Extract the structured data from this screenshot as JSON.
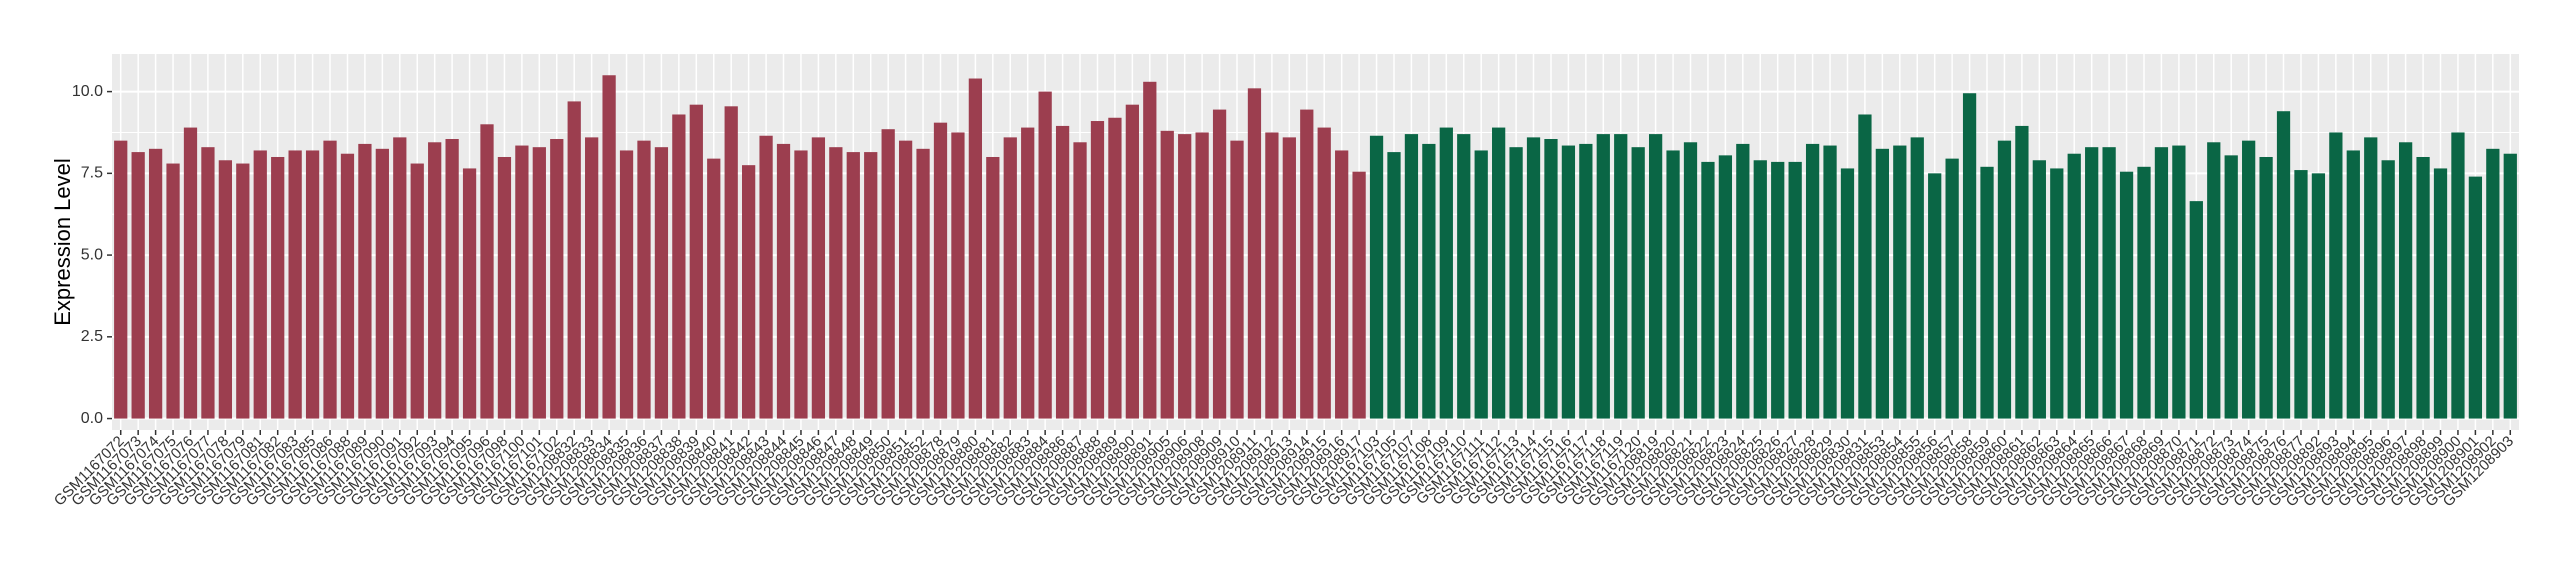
{
  "chart_data": {
    "type": "bar",
    "y_label": "Expression Level",
    "ylim": [
      -0.35,
      11.15
    ],
    "yticks": [
      {
        "value": 0,
        "label": "0.0"
      },
      {
        "value": 2.5,
        "label": "2.5"
      },
      {
        "value": 5,
        "label": "5.0"
      },
      {
        "value": 7.5,
        "label": "7.5"
      },
      {
        "value": 10,
        "label": "10.0"
      }
    ],
    "grid": true,
    "categories": [
      "GSM1167072",
      "GSM1167073",
      "GSM1167074",
      "GSM1167075",
      "GSM1167076",
      "GSM1167077",
      "GSM1167078",
      "GSM1167079",
      "GSM1167081",
      "GSM1167082",
      "GSM1167083",
      "GSM1167085",
      "GSM1167086",
      "GSM1167088",
      "GSM1167089",
      "GSM1167090",
      "GSM1167091",
      "GSM1167092",
      "GSM1167093",
      "GSM1167094",
      "GSM1167095",
      "GSM1167096",
      "GSM1167098",
      "GSM1167100",
      "GSM1167101",
      "GSM1167102",
      "GSM1208832",
      "GSM1208833",
      "GSM1208834",
      "GSM1208835",
      "GSM1208836",
      "GSM1208837",
      "GSM1208838",
      "GSM1208839",
      "GSM1208840",
      "GSM1208841",
      "GSM1208842",
      "GSM1208843",
      "GSM1208844",
      "GSM1208845",
      "GSM1208846",
      "GSM1208847",
      "GSM1208848",
      "GSM1208849",
      "GSM1208850",
      "GSM1208851",
      "GSM1208852",
      "GSM1208878",
      "GSM1208879",
      "GSM1208880",
      "GSM1208881",
      "GSM1208882",
      "GSM1208883",
      "GSM1208884",
      "GSM1208886",
      "GSM1208887",
      "GSM1208888",
      "GSM1208889",
      "GSM1208890",
      "GSM1208891",
      "GSM1208905",
      "GSM1208906",
      "GSM1208908",
      "GSM1208909",
      "GSM1208910",
      "GSM1208911",
      "GSM1208912",
      "GSM1208913",
      "GSM1208914",
      "GSM1208915",
      "GSM1208916",
      "GSM1208917",
      "GSM1167103",
      "GSM1167105",
      "GSM1167107",
      "GSM1167108",
      "GSM1167109",
      "GSM1167110",
      "GSM1167111",
      "GSM1167112",
      "GSM1167113",
      "GSM1167114",
      "GSM1167115",
      "GSM1167116",
      "GSM1167117",
      "GSM1167118",
      "GSM1167119",
      "GSM1167120",
      "GSM1208819",
      "GSM1208820",
      "GSM1208821",
      "GSM1208822",
      "GSM1208823",
      "GSM1208824",
      "GSM1208825",
      "GSM1208826",
      "GSM1208827",
      "GSM1208828",
      "GSM1208829",
      "GSM1208830",
      "GSM1208831",
      "GSM1208853",
      "GSM1208854",
      "GSM1208855",
      "GSM1208856",
      "GSM1208857",
      "GSM1208858",
      "GSM1208859",
      "GSM1208860",
      "GSM1208861",
      "GSM1208862",
      "GSM1208863",
      "GSM1208864",
      "GSM1208865",
      "GSM1208866",
      "GSM1208867",
      "GSM1208868",
      "GSM1208869",
      "GSM1208870",
      "GSM1208871",
      "GSM1208872",
      "GSM1208873",
      "GSM1208874",
      "GSM1208875",
      "GSM1208876",
      "GSM1208877",
      "GSM1208892",
      "GSM1208893",
      "GSM1208894",
      "GSM1208895",
      "GSM1208896",
      "GSM1208897",
      "GSM1208898",
      "GSM1208899",
      "GSM1208900",
      "GSM1208901",
      "GSM1208902",
      "GSM1208903"
    ],
    "values": [
      8.5,
      8.15,
      8.25,
      7.8,
      8.9,
      8.3,
      7.9,
      7.8,
      8.2,
      8.0,
      8.2,
      8.2,
      8.5,
      8.1,
      8.4,
      8.25,
      8.6,
      7.8,
      8.45,
      8.55,
      7.65,
      9.0,
      8.0,
      8.35,
      8.3,
      8.55,
      9.7,
      8.6,
      10.5,
      8.2,
      8.5,
      8.3,
      9.3,
      9.6,
      7.95,
      9.55,
      7.75,
      8.65,
      8.4,
      8.2,
      8.6,
      8.3,
      8.15,
      8.15,
      8.85,
      8.5,
      8.25,
      9.05,
      8.75,
      10.4,
      8.0,
      8.6,
      8.9,
      10.0,
      8.95,
      8.45,
      9.1,
      9.2,
      9.6,
      10.3,
      8.8,
      8.7,
      8.75,
      9.45,
      8.5,
      10.1,
      8.75,
      8.6,
      9.45,
      8.9,
      8.2,
      7.55,
      8.65,
      8.15,
      8.7,
      8.4,
      8.9,
      8.7,
      8.2,
      8.9,
      8.3,
      8.6,
      8.55,
      8.35,
      8.4,
      8.7,
      8.7,
      8.3,
      8.7,
      8.2,
      8.45,
      7.85,
      8.05,
      8.4,
      7.9,
      7.85,
      7.85,
      8.4,
      8.35,
      7.65,
      9.3,
      8.25,
      8.35,
      8.6,
      7.5,
      7.95,
      9.95,
      7.7,
      8.5,
      8.95,
      7.9,
      7.65,
      8.1,
      8.3,
      8.3,
      7.55,
      7.7,
      8.3,
      8.35,
      6.65,
      8.45,
      8.05,
      8.5,
      8.0,
      9.4,
      7.6,
      7.5,
      8.75,
      8.2,
      8.6,
      7.9,
      8.45,
      8.0,
      7.65,
      8.75,
      7.4,
      8.25,
      8.1
    ],
    "colors": [
      "#9c3e4f",
      "#9c3e4f",
      "#9c3e4f",
      "#9c3e4f",
      "#9c3e4f",
      "#9c3e4f",
      "#9c3e4f",
      "#9c3e4f",
      "#9c3e4f",
      "#9c3e4f",
      "#9c3e4f",
      "#9c3e4f",
      "#9c3e4f",
      "#9c3e4f",
      "#9c3e4f",
      "#9c3e4f",
      "#9c3e4f",
      "#9c3e4f",
      "#9c3e4f",
      "#9c3e4f",
      "#9c3e4f",
      "#9c3e4f",
      "#9c3e4f",
      "#9c3e4f",
      "#9c3e4f",
      "#9c3e4f",
      "#9c3e4f",
      "#9c3e4f",
      "#9c3e4f",
      "#9c3e4f",
      "#9c3e4f",
      "#9c3e4f",
      "#9c3e4f",
      "#9c3e4f",
      "#9c3e4f",
      "#9c3e4f",
      "#9c3e4f",
      "#9c3e4f",
      "#9c3e4f",
      "#9c3e4f",
      "#9c3e4f",
      "#9c3e4f",
      "#9c3e4f",
      "#9c3e4f",
      "#9c3e4f",
      "#9c3e4f",
      "#9c3e4f",
      "#9c3e4f",
      "#9c3e4f",
      "#9c3e4f",
      "#9c3e4f",
      "#9c3e4f",
      "#9c3e4f",
      "#9c3e4f",
      "#9c3e4f",
      "#9c3e4f",
      "#9c3e4f",
      "#9c3e4f",
      "#9c3e4f",
      "#9c3e4f",
      "#9c3e4f",
      "#9c3e4f",
      "#9c3e4f",
      "#9c3e4f",
      "#9c3e4f",
      "#9c3e4f",
      "#9c3e4f",
      "#9c3e4f",
      "#9c3e4f",
      "#9c3e4f",
      "#9c3e4f",
      "#9c3e4f",
      "#0a6645",
      "#0a6645",
      "#0a6645",
      "#0a6645",
      "#0a6645",
      "#0a6645",
      "#0a6645",
      "#0a6645",
      "#0a6645",
      "#0a6645",
      "#0a6645",
      "#0a6645",
      "#0a6645",
      "#0a6645",
      "#0a6645",
      "#0a6645",
      "#0a6645",
      "#0a6645",
      "#0a6645",
      "#0a6645",
      "#0a6645",
      "#0a6645",
      "#0a6645",
      "#0a6645",
      "#0a6645",
      "#0a6645",
      "#0a6645",
      "#0a6645",
      "#0a6645",
      "#0a6645",
      "#0a6645",
      "#0a6645",
      "#0a6645",
      "#0a6645",
      "#0a6645",
      "#0a6645",
      "#0a6645",
      "#0a6645",
      "#0a6645",
      "#0a6645",
      "#0a6645",
      "#0a6645",
      "#0a6645",
      "#0a6645",
      "#0a6645",
      "#0a6645",
      "#0a6645",
      "#0a6645",
      "#0a6645",
      "#0a6645",
      "#0a6645",
      "#0a6645",
      "#0a6645",
      "#0a6645",
      "#0a6645",
      "#0a6645",
      "#0a6645",
      "#0a6645",
      "#0a6645",
      "#0a6645",
      "#0a6645",
      "#0a6645",
      "#0a6645",
      "#0a6645",
      "#0a6645",
      "#0a6645"
    ]
  }
}
